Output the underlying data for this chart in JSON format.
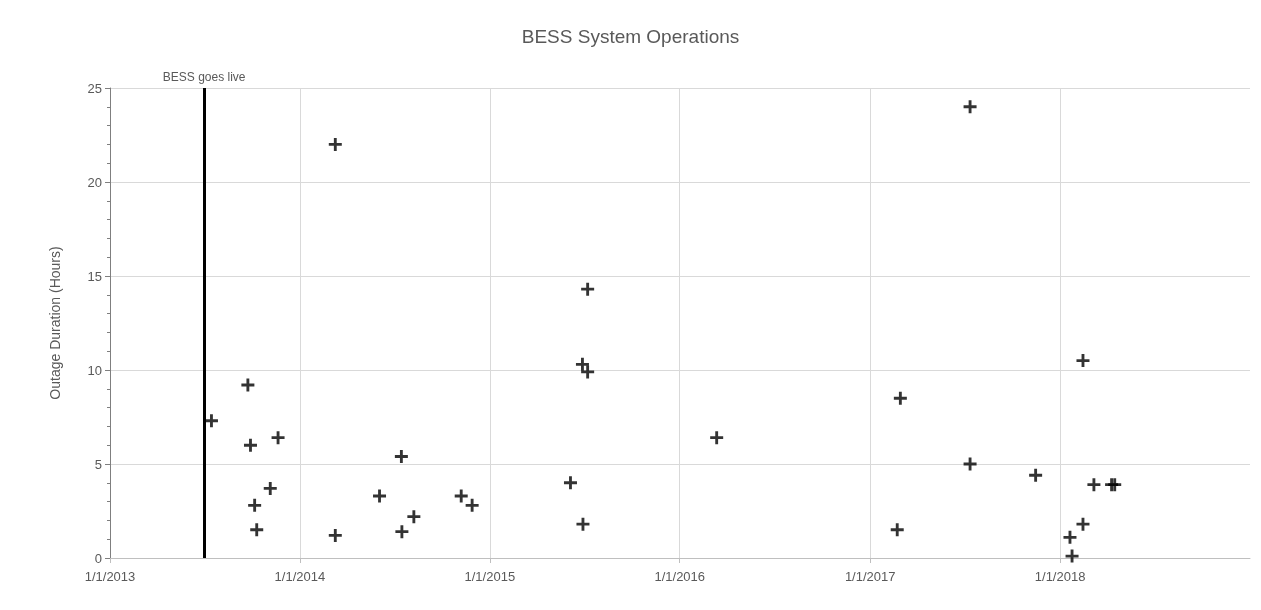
{
  "chart_data": {
    "type": "scatter",
    "title": "BESS System Operations",
    "ylabel": "Outage Duration (Hours)",
    "x": [
      "2013-07-15",
      "2013-09-23",
      "2013-09-28",
      "2013-10-06",
      "2013-10-10",
      "2013-11-05",
      "2013-11-20",
      "2014-03-10",
      "2014-03-10",
      "2014-06-03",
      "2014-07-15",
      "2014-07-16",
      "2014-08-08",
      "2014-11-07",
      "2014-11-28",
      "2015-06-05",
      "2015-06-28",
      "2015-06-29",
      "2015-07-08",
      "2015-07-08",
      "2016-03-12",
      "2017-02-22",
      "2017-02-28",
      "2017-07-12",
      "2017-07-12",
      "2017-11-15",
      "2018-01-20",
      "2018-01-24",
      "2018-02-14",
      "2018-02-14",
      "2018-03-07",
      "2018-04-10",
      "2018-04-16"
    ],
    "values": [
      7.3,
      9.2,
      6.0,
      2.8,
      1.5,
      3.7,
      6.4,
      22.0,
      1.2,
      3.3,
      5.4,
      1.4,
      2.2,
      3.3,
      2.8,
      4.0,
      10.3,
      1.8,
      14.3,
      9.9,
      6.4,
      1.5,
      8.5,
      24.0,
      5.0,
      4.4,
      1.1,
      0.1,
      1.8,
      10.5,
      3.9,
      3.9,
      3.9
    ],
    "color": "#000000",
    "marker": "cross",
    "xlim": [
      "2013-01-01",
      "2019-01-01"
    ],
    "xticks": [
      {
        "value": "2013-01-01",
        "label": "1/1/2013"
      },
      {
        "value": "2014-01-01",
        "label": "1/1/2014"
      },
      {
        "value": "2015-01-01",
        "label": "1/1/2015"
      },
      {
        "value": "2016-01-01",
        "label": "1/1/2016"
      },
      {
        "value": "2017-01-01",
        "label": "1/1/2017"
      },
      {
        "value": "2018-01-01",
        "label": "1/1/2018"
      }
    ],
    "ylim": [
      0,
      25
    ],
    "yticks": [
      0,
      5,
      10,
      15,
      20,
      25
    ],
    "ref_lines": [
      {
        "axis": "x",
        "value": "2013-07-01",
        "label": "BESS goes live",
        "color": "#000000"
      }
    ],
    "grid": true
  }
}
